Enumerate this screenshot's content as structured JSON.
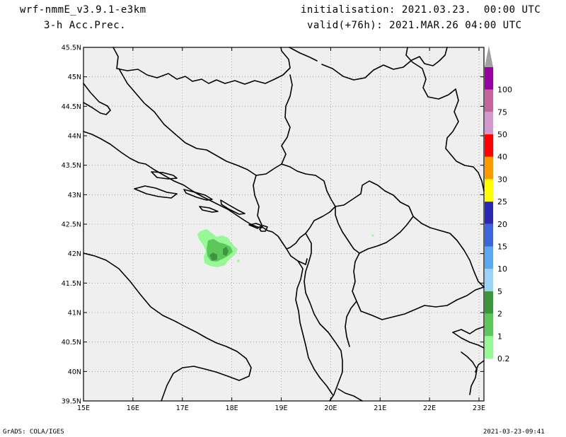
{
  "header": {
    "model": "wrf-nmmE_v3.9.1-e3km",
    "field": "3-h Acc.Prec.",
    "init": "initialisation: 2021.03.23.  00:00 UTC",
    "valid": "valid(+76h): 2021.MAR.26 04:00 UTC"
  },
  "footer": {
    "left": "GrADS: COLA/IGES",
    "right": "2021-03-23-09:41"
  },
  "map": {
    "background_color": "#efefef",
    "coastline_color": "#000000",
    "grid": "dotted",
    "lon_ticks": [
      "15E",
      "16E",
      "17E",
      "18E",
      "19E",
      "20E",
      "21E",
      "22E",
      "23E"
    ],
    "lat_ticks": [
      "45.5N",
      "45N",
      "44.5N",
      "44N",
      "43.5N",
      "43N",
      "42.5N",
      "42N",
      "41.5N",
      "41N",
      "40.5N",
      "40N",
      "39.5N"
    ],
    "precip_areas": [
      {
        "level": "0.2",
        "color": "#98f898",
        "lon": 17.7,
        "lat": 42.1
      },
      {
        "level": "1",
        "color": "#5cc85c",
        "lon": 17.7,
        "lat": 41.95
      },
      {
        "level": "2",
        "color": "#3c963c",
        "lon": 17.75,
        "lat": 41.92
      }
    ]
  },
  "colorbar": {
    "levels": [
      "0.2",
      "1",
      "2",
      "5",
      "10",
      "15",
      "20",
      "25",
      "30",
      "40",
      "50",
      "75",
      "100"
    ],
    "colors": [
      "#98f898",
      "#5cc85c",
      "#3c963c",
      "#9ad2f8",
      "#5ca8f0",
      "#3c64dc",
      "#2828b4",
      "#ffff00",
      "#ff9900",
      "#ff0000",
      "#d09ad0",
      "#c8649c",
      "#9600a0",
      "#a0a0a0"
    ]
  }
}
